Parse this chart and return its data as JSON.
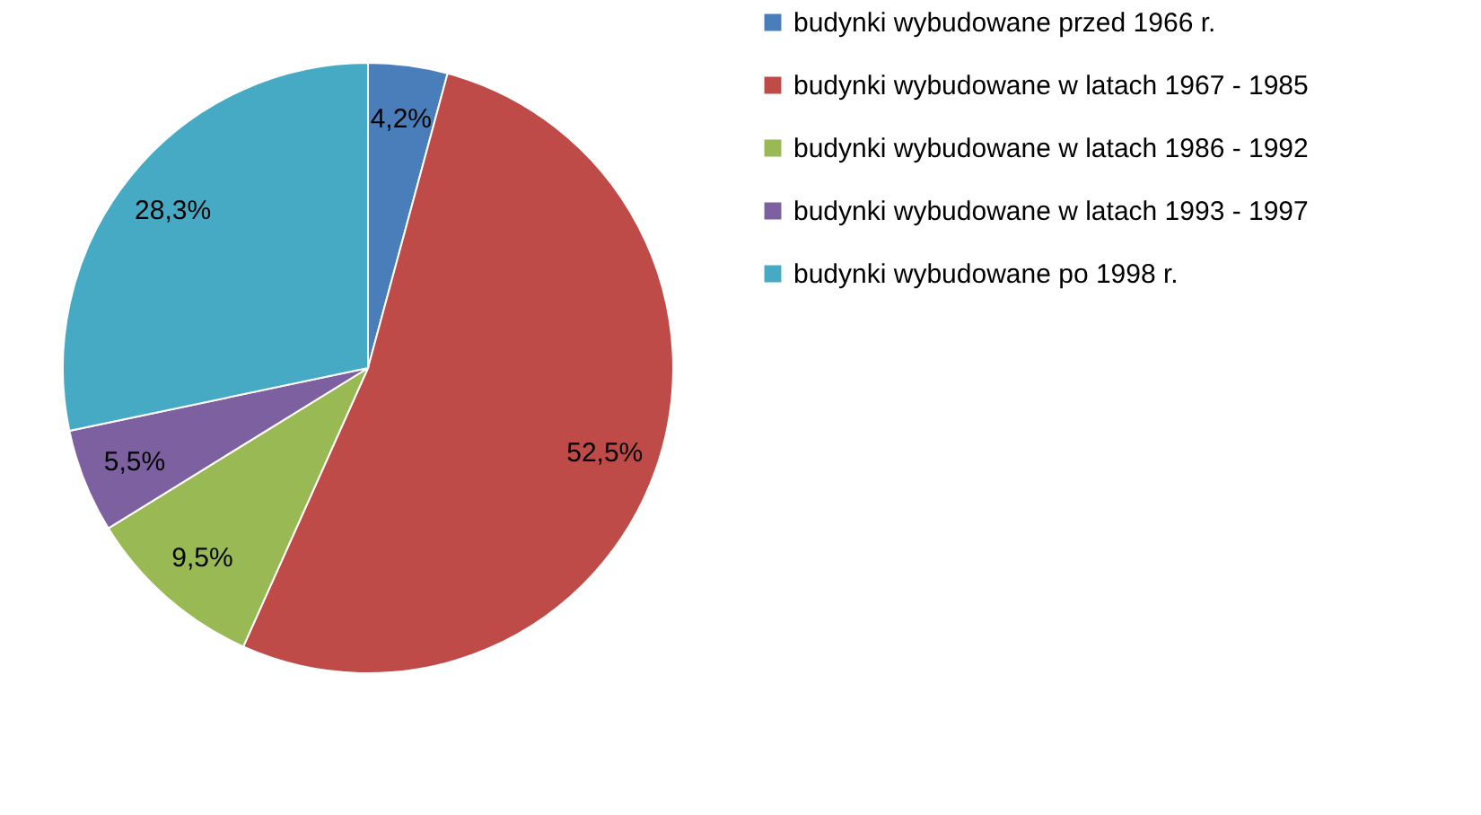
{
  "chart_data": {
    "type": "pie",
    "categories": [
      "budynki wybudowane przed 1966 r.",
      "budynki wybudowane w latach 1967 - 1985",
      "budynki wybudowane w latach 1986 - 1992",
      "budynki wybudowane w latach 1993 - 1997",
      "budynki wybudowane po 1998 r."
    ],
    "values": [
      4.2,
      52.5,
      9.5,
      5.5,
      28.3
    ],
    "colors": [
      "#4a7ebb",
      "#be4b48",
      "#98b954",
      "#7d60a0",
      "#46aac5"
    ],
    "value_labels": [
      "4,2%",
      "52,5%",
      "9,5%",
      "5,5%",
      "28,3%"
    ],
    "legend": "right"
  }
}
